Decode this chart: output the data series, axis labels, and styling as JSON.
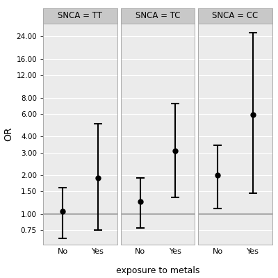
{
  "panels": [
    {
      "title": "SNCA = TT",
      "points": [
        {
          "x": "No",
          "or": 1.05,
          "ci_low": 0.65,
          "ci_high": 1.6
        },
        {
          "x": "Yes",
          "or": 1.9,
          "ci_low": 0.75,
          "ci_high": 5.0
        }
      ]
    },
    {
      "title": "SNCA = TC",
      "points": [
        {
          "x": "No",
          "or": 1.25,
          "ci_low": 0.78,
          "ci_high": 1.9
        },
        {
          "x": "Yes",
          "or": 3.1,
          "ci_low": 1.35,
          "ci_high": 7.2
        }
      ]
    },
    {
      "title": "SNCA = CC",
      "points": [
        {
          "x": "No",
          "or": 2.0,
          "ci_low": 1.1,
          "ci_high": 3.4
        },
        {
          "x": "Yes",
          "or": 5.9,
          "ci_low": 1.45,
          "ci_high": 25.5
        }
      ]
    }
  ],
  "ylabel": "OR",
  "xlabel": "exposure to metals",
  "reference_line": 1.0,
  "yticks": [
    0.75,
    1.0,
    1.5,
    2.0,
    3.0,
    4.0,
    6.0,
    8.0,
    12.0,
    16.0,
    24.0
  ],
  "ytick_labels": [
    "0.75",
    "1.00",
    "1.50",
    "2.00",
    "3.00",
    "4.00",
    "6.00",
    "8.00",
    "12.00",
    "16.00",
    "24.00"
  ],
  "ymin": 0.58,
  "ymax": 30.0,
  "panel_bg": "#EBEBEB",
  "strip_bg": "#C8C8C8",
  "grid_color": "#FFFFFF",
  "point_color": "#000000",
  "point_size": 5,
  "line_color": "#000000",
  "ref_line_color": "#AAAAAA",
  "figure_bg": "#FFFFFF",
  "spine_color": "#AAAAAA"
}
